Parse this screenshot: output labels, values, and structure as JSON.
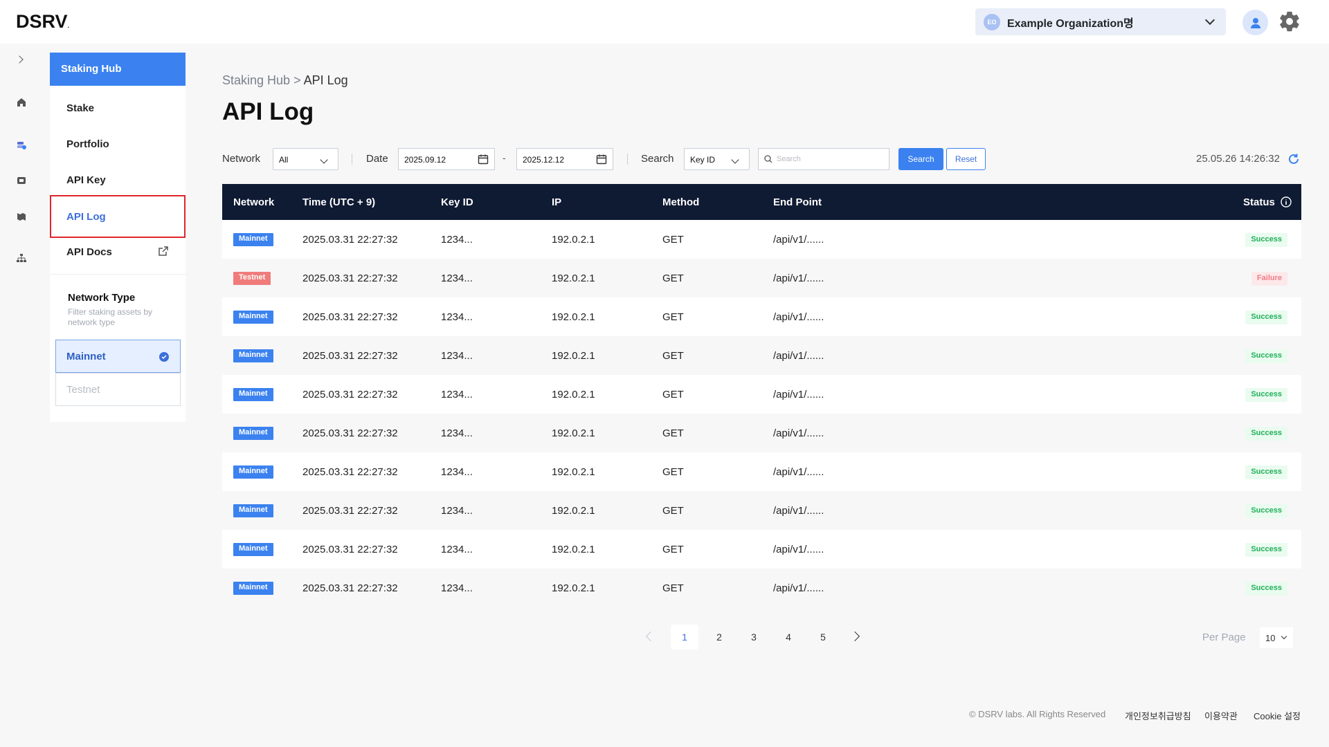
{
  "header": {
    "logo": "DSRV",
    "org_badge": "EO",
    "org_name": "Example Organization명"
  },
  "sidebar": {
    "title": "Staking Hub",
    "items": [
      {
        "label": "Stake"
      },
      {
        "label": "Portfolio"
      },
      {
        "label": "API Key"
      },
      {
        "label": "API Log"
      },
      {
        "label": "API Docs"
      }
    ],
    "network_type": {
      "title": "Network Type",
      "subtitle": "Filter staking assets by network type",
      "options": [
        "Mainnet",
        "Testnet"
      ],
      "selected": "Mainnet"
    }
  },
  "breadcrumb": {
    "parent": "Staking Hub",
    "separator": ">",
    "current": "API Log"
  },
  "page_title": "API Log",
  "filters": {
    "network_label": "Network",
    "network_value": "All",
    "date_label": "Date",
    "date_from": "2025.09.12",
    "date_sep": "-",
    "date_to": "2025.12.12",
    "search_label": "Search",
    "search_field": "Key ID",
    "search_placeholder": "Search",
    "search_button": "Search",
    "reset_button": "Reset",
    "timestamp": "25.05.26 14:26:32"
  },
  "table": {
    "headers": [
      "Network",
      "Time (UTC + 9)",
      "Key ID",
      "IP",
      "Method",
      "End Point",
      "Status"
    ],
    "rows": [
      {
        "network": "Mainnet",
        "time": "2025.03.31 22:27:32",
        "key_id": "1234...",
        "ip": "192.0.2.1",
        "method": "GET",
        "endpoint": "/api/v1/......",
        "status": "Success"
      },
      {
        "network": "Testnet",
        "time": "2025.03.31 22:27:32",
        "key_id": "1234...",
        "ip": "192.0.2.1",
        "method": "GET",
        "endpoint": "/api/v1/......",
        "status": "Failure"
      },
      {
        "network": "Mainnet",
        "time": "2025.03.31 22:27:32",
        "key_id": "1234...",
        "ip": "192.0.2.1",
        "method": "GET",
        "endpoint": "/api/v1/......",
        "status": "Success"
      },
      {
        "network": "Mainnet",
        "time": "2025.03.31 22:27:32",
        "key_id": "1234...",
        "ip": "192.0.2.1",
        "method": "GET",
        "endpoint": "/api/v1/......",
        "status": "Success"
      },
      {
        "network": "Mainnet",
        "time": "2025.03.31 22:27:32",
        "key_id": "1234...",
        "ip": "192.0.2.1",
        "method": "GET",
        "endpoint": "/api/v1/......",
        "status": "Success"
      },
      {
        "network": "Mainnet",
        "time": "2025.03.31 22:27:32",
        "key_id": "1234...",
        "ip": "192.0.2.1",
        "method": "GET",
        "endpoint": "/api/v1/......",
        "status": "Success"
      },
      {
        "network": "Mainnet",
        "time": "2025.03.31 22:27:32",
        "key_id": "1234...",
        "ip": "192.0.2.1",
        "method": "GET",
        "endpoint": "/api/v1/......",
        "status": "Success"
      },
      {
        "network": "Mainnet",
        "time": "2025.03.31 22:27:32",
        "key_id": "1234...",
        "ip": "192.0.2.1",
        "method": "GET",
        "endpoint": "/api/v1/......",
        "status": "Success"
      },
      {
        "network": "Mainnet",
        "time": "2025.03.31 22:27:32",
        "key_id": "1234...",
        "ip": "192.0.2.1",
        "method": "GET",
        "endpoint": "/api/v1/......",
        "status": "Success"
      },
      {
        "network": "Mainnet",
        "time": "2025.03.31 22:27:32",
        "key_id": "1234...",
        "ip": "192.0.2.1",
        "method": "GET",
        "endpoint": "/api/v1/......",
        "status": "Success"
      }
    ]
  },
  "pagination": {
    "pages": [
      "1",
      "2",
      "3",
      "4",
      "5"
    ],
    "current": "1",
    "per_page_label": "Per Page",
    "per_page_value": "10"
  },
  "footer": {
    "copyright": "© DSRV labs. All Rights Reserved",
    "links": [
      "개인정보취급방침",
      "이용약관",
      "Cookie 설정"
    ]
  },
  "colors": {
    "accent": "#3b82f0",
    "table_header": "#0f1a33",
    "success": "#21b05a",
    "failure": "#f07b85"
  }
}
